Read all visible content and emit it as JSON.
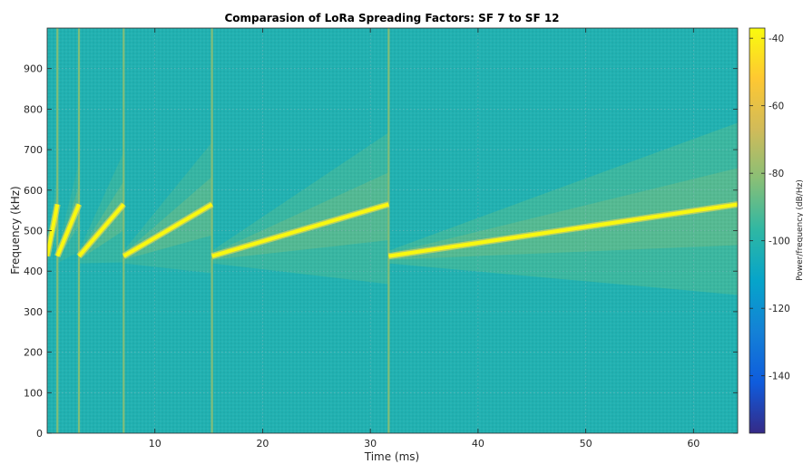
{
  "chart_data": {
    "type": "heatmap",
    "title": "Comparasion of LoRa Spreading Factors: SF 7 to SF 12",
    "xlabel": "Time (ms)",
    "ylabel": "Frequency (kHz)",
    "xlim": [
      0,
      64.1
    ],
    "ylim": [
      0,
      1000
    ],
    "x_ticks": [
      10,
      20,
      30,
      40,
      50,
      60
    ],
    "y_ticks": [
      0,
      100,
      200,
      300,
      400,
      500,
      600,
      700,
      800,
      900
    ],
    "colorbar": {
      "label": "Power/frequency (dB/Hz)",
      "range": [
        -157,
        -37
      ],
      "ticks": [
        -140,
        -120,
        -100,
        -80,
        -60,
        -40
      ],
      "colormap": "parula",
      "colors": [
        "#352a87",
        "#0f5cdd",
        "#1481d6",
        "#06a4ca",
        "#2eb7a4",
        "#87bf77",
        "#d1bb59",
        "#fec832",
        "#f9fb0e"
      ]
    },
    "background_level": -102,
    "chirp_level": -38,
    "series": [
      {
        "start_ms": 0.0,
        "end_ms": 0.95,
        "f_start_khz": 437,
        "f_end_khz": 565
      },
      {
        "start_ms": 0.95,
        "end_ms": 2.95,
        "f_start_khz": 437,
        "f_end_khz": 565
      },
      {
        "start_ms": 2.95,
        "end_ms": 7.1,
        "f_start_khz": 437,
        "f_end_khz": 565
      },
      {
        "start_ms": 7.1,
        "end_ms": 15.3,
        "f_start_khz": 437,
        "f_end_khz": 565
      },
      {
        "start_ms": 15.3,
        "end_ms": 31.7,
        "f_start_khz": 437,
        "f_end_khz": 565
      },
      {
        "start_ms": 31.7,
        "end_ms": 64.1,
        "f_start_khz": 437,
        "f_end_khz": 565
      }
    ],
    "transitions_ms": [
      0.95,
      2.95,
      7.1,
      15.3,
      31.7
    ],
    "grid": true
  }
}
